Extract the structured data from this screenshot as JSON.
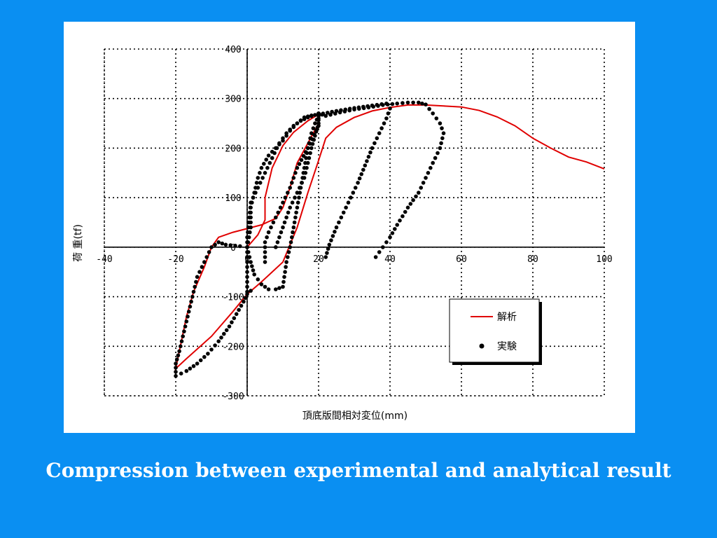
{
  "caption": "Compression between experimental and analytical result",
  "colors": {
    "background": "#0a8ff2",
    "panel": "#ffffff",
    "analysis": "#e00000",
    "experiment": "#000000"
  },
  "chart_data": {
    "type": "line",
    "title": "",
    "xlabel": "頂底版間相対変位(mm)",
    "ylabel": "荷 重(tf)",
    "xlim": [
      -40,
      100
    ],
    "ylim": [
      -300,
      400
    ],
    "x_ticks": [
      "-40",
      "-20",
      "0",
      "20",
      "40",
      "60",
      "80",
      "100"
    ],
    "y_ticks": [
      "400",
      "300",
      "200",
      "100",
      "0",
      "-100",
      "-200",
      "-300"
    ],
    "grid": true,
    "grid_style": "dotted",
    "legend_position": "lower-right",
    "series": [
      {
        "name": "解析",
        "style": "line",
        "color": "#e00000",
        "segments": [
          [
            [
              0,
              0
            ],
            [
              3,
              25
            ],
            [
              5,
              55
            ],
            [
              5,
              100
            ],
            [
              7,
              160
            ],
            [
              10,
              205
            ],
            [
              13,
              232
            ],
            [
              17,
              255
            ],
            [
              20,
              268
            ],
            [
              20,
              250
            ],
            [
              17,
              210
            ],
            [
              14,
              170
            ],
            [
              12,
              120
            ],
            [
              10,
              80
            ],
            [
              8,
              58
            ],
            [
              4,
              45
            ],
            [
              -4,
              30
            ],
            [
              -8,
              20
            ],
            [
              -10,
              0
            ],
            [
              -12,
              -40
            ],
            [
              -15,
              -90
            ],
            [
              -17,
              -140
            ],
            [
              -19,
              -210
            ],
            [
              -20,
              -245
            ],
            [
              -17,
              -225
            ],
            [
              -10,
              -180
            ],
            [
              -4,
              -130
            ],
            [
              0,
              -95
            ],
            [
              4,
              -70
            ],
            [
              10,
              -30
            ],
            [
              14,
              40
            ],
            [
              17,
              110
            ],
            [
              20,
              175
            ],
            [
              22,
              220
            ],
            [
              25,
              242
            ],
            [
              30,
              262
            ],
            [
              35,
              275
            ],
            [
              40,
              282
            ],
            [
              45,
              287
            ],
            [
              50,
              287
            ],
            [
              55,
              285
            ],
            [
              60,
              283
            ],
            [
              65,
              276
            ],
            [
              70,
              263
            ],
            [
              75,
              245
            ],
            [
              80,
              220
            ],
            [
              85,
              200
            ],
            [
              90,
              182
            ],
            [
              95,
              172
            ],
            [
              100,
              158
            ]
          ]
        ]
      },
      {
        "name": "実験",
        "style": "points",
        "color": "#000000",
        "segments": [
          [
            [
              0,
              0
            ],
            [
              0,
              20
            ],
            [
              0.5,
              50
            ],
            [
              1,
              90
            ],
            [
              3,
              120
            ],
            [
              5,
              150
            ],
            [
              7,
              180
            ],
            [
              9,
              210
            ],
            [
              11,
              230
            ],
            [
              13,
              245
            ],
            [
              15,
              255
            ],
            [
              17,
              262
            ],
            [
              19,
              267
            ],
            [
              20,
              270
            ],
            [
              20,
              250
            ],
            [
              19,
              225
            ],
            [
              18,
              200
            ],
            [
              17,
              170
            ],
            [
              16,
              140
            ],
            [
              14,
              110
            ],
            [
              12,
              80
            ],
            [
              11,
              60
            ],
            [
              10,
              40
            ],
            [
              9,
              20
            ],
            [
              8,
              0
            ]
          ],
          [
            [
              0,
              0
            ],
            [
              1,
              -30
            ],
            [
              2,
              -55
            ],
            [
              4,
              -75
            ],
            [
              6,
              -85
            ],
            [
              8,
              -85
            ],
            [
              10,
              -80
            ],
            [
              11,
              -30
            ],
            [
              12,
              0
            ],
            [
              13,
              40
            ],
            [
              14,
              80
            ],
            [
              15,
              120
            ],
            [
              16,
              160
            ],
            [
              17,
              200
            ],
            [
              18,
              230
            ],
            [
              19,
              250
            ],
            [
              20,
              265
            ],
            [
              20,
              270
            ]
          ],
          [
            [
              0,
              0
            ],
            [
              -2,
              2
            ],
            [
              -6,
              5
            ],
            [
              -8,
              10
            ],
            [
              -10,
              0
            ],
            [
              -12,
              -30
            ],
            [
              -14,
              -60
            ],
            [
              -15,
              -90
            ],
            [
              -16,
              -120
            ],
            [
              -17,
              -150
            ],
            [
              -18,
              -180
            ],
            [
              -19,
              -210
            ],
            [
              -20,
              -235
            ],
            [
              -20,
              -260
            ],
            [
              -17,
              -250
            ],
            [
              -14,
              -235
            ],
            [
              -11,
              -215
            ],
            [
              -8,
              -190
            ],
            [
              -5,
              -160
            ],
            [
              -3,
              -135
            ],
            [
              -1,
              -110
            ],
            [
              0,
              -95
            ],
            [
              1,
              -88
            ]
          ],
          [
            [
              0,
              -90
            ],
            [
              0,
              -60
            ],
            [
              0,
              -30
            ],
            [
              0,
              0
            ],
            [
              1,
              40
            ],
            [
              1,
              80
            ],
            [
              2,
              110
            ],
            [
              3,
              140
            ],
            [
              4,
              160
            ],
            [
              6,
              185
            ],
            [
              8,
              200
            ],
            [
              10,
              215
            ],
            [
              12,
              235
            ],
            [
              14,
              250
            ],
            [
              16,
              262
            ],
            [
              18,
              266
            ],
            [
              20,
              268
            ],
            [
              20,
              245
            ],
            [
              17,
              200
            ],
            [
              14,
              160
            ],
            [
              12,
              120
            ],
            [
              10,
              90
            ],
            [
              8,
              60
            ],
            [
              6,
              30
            ],
            [
              5,
              10
            ],
            [
              5,
              -10
            ],
            [
              5,
              -30
            ]
          ],
          [
            [
              20,
              270
            ],
            [
              22,
              265
            ],
            [
              26,
              272
            ],
            [
              30,
              278
            ],
            [
              34,
              282
            ],
            [
              38,
              287
            ],
            [
              42,
              290
            ],
            [
              45,
              292
            ],
            [
              48,
              292
            ],
            [
              50,
              288
            ],
            [
              52,
              270
            ],
            [
              54,
              250
            ],
            [
              55,
              230
            ],
            [
              54,
              200
            ],
            [
              52,
              170
            ],
            [
              50,
              140
            ],
            [
              48,
              110
            ],
            [
              45,
              80
            ],
            [
              42,
              45
            ],
            [
              40,
              20
            ],
            [
              38,
              0
            ],
            [
              36,
              -20
            ]
          ],
          [
            [
              20,
              268
            ],
            [
              25,
              275
            ],
            [
              30,
              281
            ],
            [
              35,
              286
            ],
            [
              39,
              290
            ],
            [
              40,
              280
            ],
            [
              39,
              260
            ],
            [
              37,
              230
            ],
            [
              35,
              200
            ],
            [
              33,
              165
            ],
            [
              31,
              130
            ],
            [
              29,
              100
            ],
            [
              27,
              70
            ],
            [
              25,
              40
            ],
            [
              23,
              5
            ],
            [
              22,
              -20
            ]
          ]
        ]
      }
    ]
  },
  "legend": {
    "items": [
      {
        "label": "解析",
        "kind": "line",
        "color": "#e00000"
      },
      {
        "label": "実験",
        "kind": "point",
        "color": "#000000"
      }
    ]
  }
}
